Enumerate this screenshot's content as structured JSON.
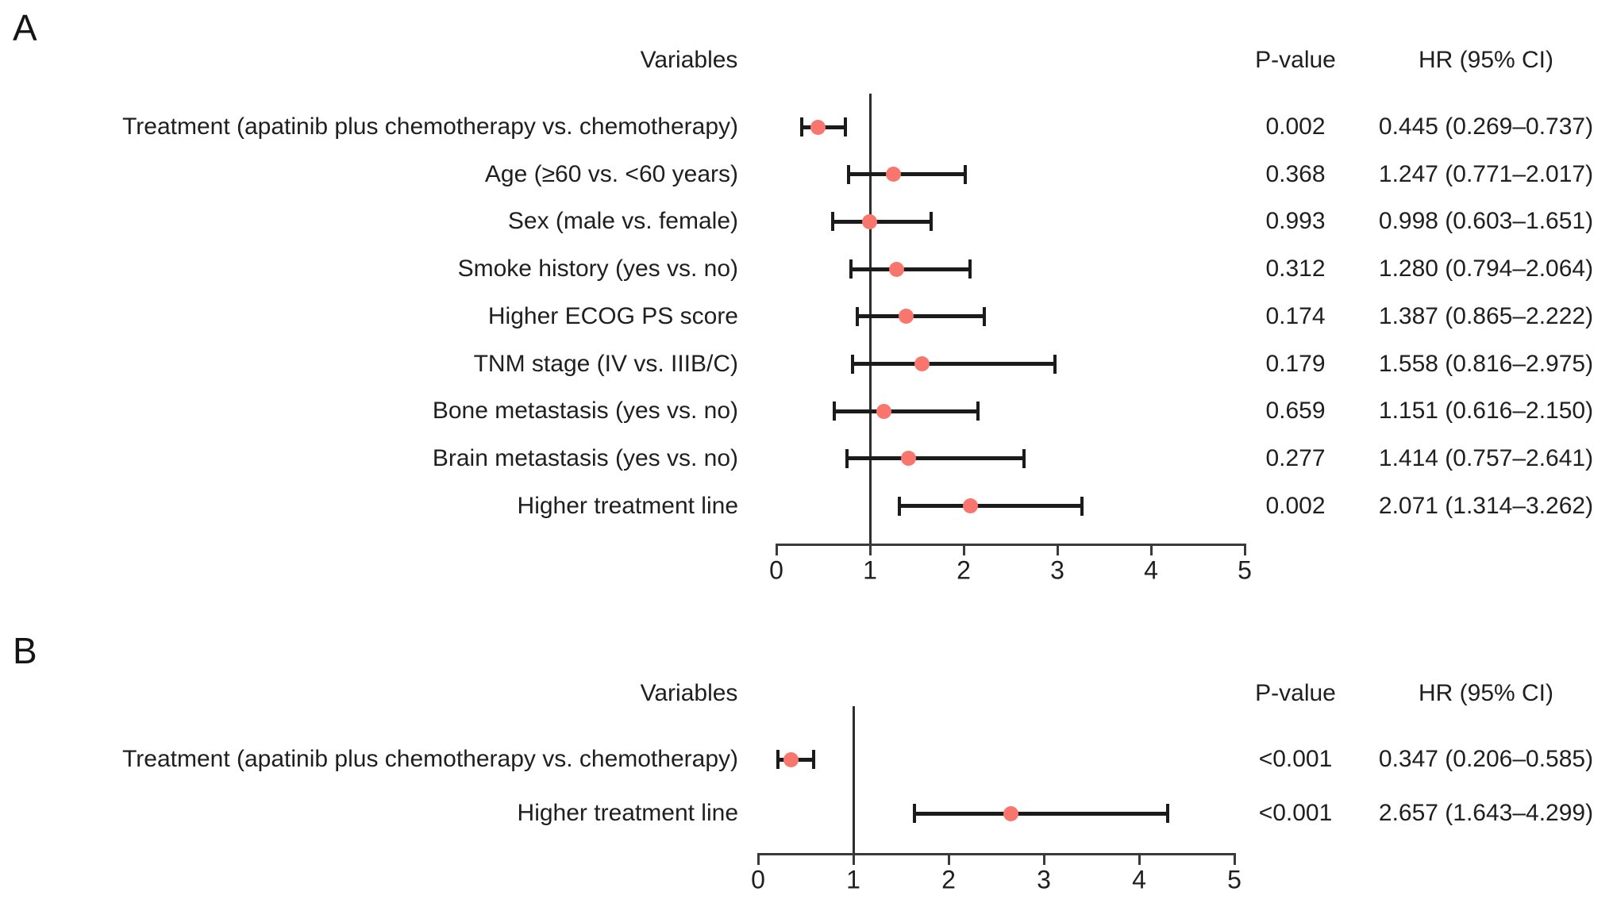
{
  "figure": {
    "background": "#ffffff",
    "marker_color": "#f8766d",
    "line_color": "#1b1b1b",
    "text_color": "#1f1f1f"
  },
  "chart_data": [
    {
      "type": "scatter",
      "panel": "A",
      "description": "Forest plot of hazard ratios with 95% confidence intervals (univariate analysis)",
      "columns": {
        "variables": "Variables",
        "p_value": "P-value",
        "hr_ci": "HR (95% CI)"
      },
      "xlim": [
        0,
        5
      ],
      "x_ticks": [
        "0",
        "1",
        "2",
        "3",
        "4",
        "5"
      ],
      "reference_line_x": 1,
      "grid": false,
      "rows": [
        {
          "label": "Treatment (apatinib plus chemotherapy vs. chemotherapy)",
          "p_value": "0.002",
          "hr_ci": "0.445 (0.269–0.737)",
          "hr": 0.445,
          "ci_low": 0.269,
          "ci_high": 0.737
        },
        {
          "label": "Age (≥60 vs. <60 years)",
          "p_value": "0.368",
          "hr_ci": "1.247 (0.771–2.017)",
          "hr": 1.247,
          "ci_low": 0.771,
          "ci_high": 2.017
        },
        {
          "label": "Sex (male vs. female)",
          "p_value": "0.993",
          "hr_ci": "0.998 (0.603–1.651)",
          "hr": 0.998,
          "ci_low": 0.603,
          "ci_high": 1.651
        },
        {
          "label": "Smoke history (yes vs. no)",
          "p_value": "0.312",
          "hr_ci": "1.280 (0.794–2.064)",
          "hr": 1.28,
          "ci_low": 0.794,
          "ci_high": 2.064
        },
        {
          "label": "Higher ECOG PS score",
          "p_value": "0.174",
          "hr_ci": "1.387 (0.865–2.222)",
          "hr": 1.387,
          "ci_low": 0.865,
          "ci_high": 2.222
        },
        {
          "label": "TNM stage (IV vs. IIIB/C)",
          "p_value": "0.179",
          "hr_ci": "1.558 (0.816–2.975)",
          "hr": 1.558,
          "ci_low": 0.816,
          "ci_high": 2.975
        },
        {
          "label": "Bone metastasis (yes vs. no)",
          "p_value": "0.659",
          "hr_ci": "1.151 (0.616–2.150)",
          "hr": 1.151,
          "ci_low": 0.616,
          "ci_high": 2.15
        },
        {
          "label": "Brain metastasis (yes vs. no)",
          "p_value": "0.277",
          "hr_ci": "1.414 (0.757–2.641)",
          "hr": 1.414,
          "ci_low": 0.757,
          "ci_high": 2.641
        },
        {
          "label": "Higher treatment line",
          "p_value": "0.002",
          "hr_ci": "2.071 (1.314–3.262)",
          "hr": 2.071,
          "ci_low": 1.314,
          "ci_high": 3.262
        }
      ]
    },
    {
      "type": "scatter",
      "panel": "B",
      "description": "Forest plot of hazard ratios with 95% confidence intervals (multivariate analysis)",
      "columns": {
        "variables": "Variables",
        "p_value": "P-value",
        "hr_ci": "HR (95% CI)"
      },
      "xlim": [
        0,
        5
      ],
      "x_ticks": [
        "0",
        "1",
        "2",
        "3",
        "4",
        "5"
      ],
      "reference_line_x": 1,
      "grid": false,
      "rows": [
        {
          "label": "Treatment (apatinib plus chemotherapy vs. chemotherapy)",
          "p_value": "<0.001",
          "hr_ci": "0.347 (0.206–0.585)",
          "hr": 0.347,
          "ci_low": 0.206,
          "ci_high": 0.585
        },
        {
          "label": "Higher treatment line",
          "p_value": "<0.001",
          "hr_ci": "2.657 (1.643–4.299)",
          "hr": 2.657,
          "ci_low": 1.643,
          "ci_high": 4.299
        }
      ]
    }
  ]
}
